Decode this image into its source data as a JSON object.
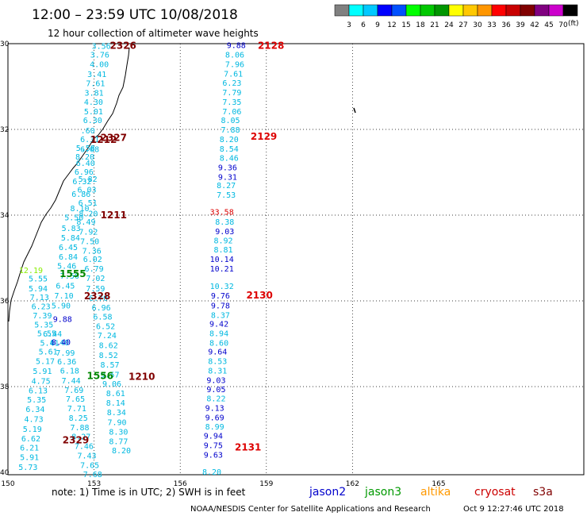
{
  "header": {
    "title": "12:00 – 23:59 UTC 10/08/2018",
    "subtitle": "12 hour collection of altimeter wave heights"
  },
  "colorbar": {
    "unit": "(ft)",
    "labels": [
      "3",
      "6",
      "9",
      "12",
      "15",
      "18",
      "21",
      "24",
      "27",
      "30",
      "33",
      "36",
      "39",
      "42",
      "45",
      "70"
    ],
    "colors": [
      "#808080",
      "#00ffff",
      "#00c8ff",
      "#0000ff",
      "#0050ff",
      "#00ff00",
      "#00c800",
      "#009600",
      "#ffff00",
      "#ffc800",
      "#ff9600",
      "#ff0000",
      "#c80000",
      "#800000",
      "#800080",
      "#cc00cc",
      "#000000"
    ]
  },
  "axes": {
    "lat_labels": [
      "30",
      "32",
      "34",
      "36",
      "38",
      "40"
    ],
    "lon_labels": [
      "150",
      "153",
      "156",
      "159",
      "162",
      "165"
    ]
  },
  "footer": {
    "note": "note: 1) Time is in UTC; 2) SWH is in feet",
    "credit": "NOAA/NESDIS Center for Satellite Applications and Research",
    "timestamp": "Oct  9 12:27:46 UTC 2018",
    "legend": [
      {
        "name": "jason2",
        "color": "#0000cc"
      },
      {
        "name": "jason3",
        "color": "#009900"
      },
      {
        "name": "altika",
        "color": "#ff9900"
      },
      {
        "name": "cryosat",
        "color": "#cc0000"
      },
      {
        "name": "s3a",
        "color": "#800000"
      }
    ]
  },
  "track_colors": {
    "cyan": "#00b8e0",
    "blue": "#0000cc",
    "brightcyan": "#00e0ff",
    "green": "#008800",
    "time_red": "#dd0000",
    "time_dark": "#800000",
    "lightgreen": "#88ee00"
  },
  "time_labels": [
    {
      "text": "2326",
      "lat": 30.03,
      "lon": 153.55,
      "color": "#800000"
    },
    {
      "text": "2327",
      "lat": 32.18,
      "lon": 153.22,
      "color": "#800000"
    },
    {
      "text": "1212",
      "lat": 32.22,
      "lon": 152.87,
      "color": "#800000"
    },
    {
      "text": "1211",
      "lat": 33.98,
      "lon": 153.22,
      "color": "#800000"
    },
    {
      "text": "2328",
      "lat": 35.87,
      "lon": 152.65,
      "color": "#800000"
    },
    {
      "text": "1210",
      "lat": 37.75,
      "lon": 154.2,
      "color": "#800000"
    },
    {
      "text": "2329",
      "lat": 39.23,
      "lon": 151.9,
      "color": "#800000"
    },
    {
      "text": "1555",
      "lat": 35.35,
      "lon": 151.8,
      "color": "#008800"
    },
    {
      "text": "1556",
      "lat": 37.73,
      "lon": 152.75,
      "color": "#008800"
    },
    {
      "text": "2128",
      "lat": 30.03,
      "lon": 158.7,
      "color": "#dd0000"
    },
    {
      "text": "2129",
      "lat": 32.15,
      "lon": 158.45,
      "color": "#dd0000"
    },
    {
      "text": "2130",
      "lat": 35.85,
      "lon": 158.3,
      "color": "#dd0000"
    },
    {
      "text": "2131",
      "lat": 39.4,
      "lon": 157.9,
      "color": "#dd0000"
    }
  ],
  "tracks": [
    {
      "color": "#00b8e0",
      "points": [
        {
          "v": "3.56",
          "lat": 30.05,
          "lon": 153.25
        },
        {
          "v": "3.76",
          "lat": 30.25,
          "lon": 153.2
        },
        {
          "v": "4.00",
          "lat": 30.47,
          "lon": 153.18
        },
        {
          "v": "3.41",
          "lat": 30.7,
          "lon": 153.1
        },
        {
          "v": "7.61",
          "lat": 30.92,
          "lon": 153.05
        },
        {
          "v": "3.81",
          "lat": 31.14,
          "lon": 153.0
        },
        {
          "v": "4.30",
          "lat": 31.35,
          "lon": 152.98
        },
        {
          "v": "5.01",
          "lat": 31.57,
          "lon": 152.98
        },
        {
          "v": "6.30",
          "lat": 31.78,
          "lon": 152.95
        },
        {
          "v": ".60",
          "lat": 32.02,
          "lon": 152.78
        },
        {
          "v": "6.31",
          "lat": 32.22,
          "lon": 152.85
        },
        {
          "v": "5.58",
          "lat": 32.43,
          "lon": 152.7
        },
        {
          "v": "6.08",
          "lat": 32.45,
          "lon": 152.85
        },
        {
          "v": "8.20",
          "lat": 32.63,
          "lon": 152.68
        },
        {
          "v": "6.40",
          "lat": 32.78,
          "lon": 152.7
        },
        {
          "v": "6.96",
          "lat": 32.98,
          "lon": 152.65
        },
        {
          "v": "6.32",
          "lat": 33.2,
          "lon": 152.58
        },
        {
          "v": "5.82",
          "lat": 33.15,
          "lon": 152.78
        },
        {
          "v": "6.03",
          "lat": 33.4,
          "lon": 152.75
        },
        {
          "v": "6.86",
          "lat": 33.5,
          "lon": 152.55
        },
        {
          "v": "6.51",
          "lat": 33.7,
          "lon": 152.78
        },
        {
          "v": "8.10",
          "lat": 33.83,
          "lon": 152.5
        },
        {
          "v": "8.20",
          "lat": 33.95,
          "lon": 152.8
        },
        {
          "v": "5.50",
          "lat": 34.05,
          "lon": 152.3
        }
      ]
    },
    {
      "color": "#00b8e0",
      "points": [
        {
          "v": "8.49",
          "lat": 34.15,
          "lon": 152.72
        },
        {
          "v": "7.92",
          "lat": 34.38,
          "lon": 152.8
        },
        {
          "v": "7.50",
          "lat": 34.6,
          "lon": 152.85
        },
        {
          "v": "7.36",
          "lat": 34.82,
          "lon": 152.92
        },
        {
          "v": "6.02",
          "lat": 35.02,
          "lon": 152.95
        },
        {
          "v": "6.79",
          "lat": 35.24,
          "lon": 153.0
        },
        {
          "v": "7.02",
          "lat": 35.46,
          "lon": 153.05
        },
        {
          "v": "7.59",
          "lat": 35.7,
          "lon": 153.05
        },
        {
          "v": "6.70",
          "lat": 35.93,
          "lon": 153.15
        },
        {
          "v": "6.96",
          "lat": 36.15,
          "lon": 153.25
        },
        {
          "v": "6.58",
          "lat": 36.36,
          "lon": 153.3
        },
        {
          "v": "6.52",
          "lat": 36.58,
          "lon": 153.4
        },
        {
          "v": "7.24",
          "lat": 36.8,
          "lon": 153.45
        },
        {
          "v": "8.62",
          "lat": 37.03,
          "lon": 153.5
        },
        {
          "v": "8.52",
          "lat": 37.26,
          "lon": 153.5
        },
        {
          "v": "8.57",
          "lat": 37.48,
          "lon": 153.55
        },
        {
          "v": "9.57",
          "lat": 37.71,
          "lon": 153.55
        },
        {
          "v": "9.06",
          "lat": 37.93,
          "lon": 153.62
        },
        {
          "v": "8.61",
          "lat": 38.15,
          "lon": 153.75
        },
        {
          "v": "8.14",
          "lat": 38.37,
          "lon": 153.75
        },
        {
          "v": "8.34",
          "lat": 38.59,
          "lon": 153.78
        },
        {
          "v": "7.90",
          "lat": 38.82,
          "lon": 153.8
        },
        {
          "v": "8.30",
          "lat": 39.05,
          "lon": 153.85
        },
        {
          "v": "8.77",
          "lat": 39.27,
          "lon": 153.85
        },
        {
          "v": "8.20",
          "lat": 39.48,
          "lon": 153.95
        }
      ]
    },
    {
      "color": "#00b8e0",
      "points": [
        {
          "v": "5.83",
          "lat": 34.3,
          "lon": 152.2
        },
        {
          "v": "5.84",
          "lat": 34.52,
          "lon": 152.18
        },
        {
          "v": "6.45",
          "lat": 34.74,
          "lon": 152.1
        },
        {
          "v": "6.84",
          "lat": 34.96,
          "lon": 152.1
        },
        {
          "v": "5.46",
          "lat": 35.18,
          "lon": 152.05
        },
        {
          "v": "7.56",
          "lat": 35.41,
          "lon": 152.15
        },
        {
          "v": "6.45",
          "lat": 35.64,
          "lon": 152.0
        },
        {
          "v": "7.10",
          "lat": 35.87,
          "lon": 151.95
        },
        {
          "v": "5.90",
          "lat": 36.1,
          "lon": 151.85
        },
        {
          "v": "6.40",
          "lat": 36.96,
          "lon": 151.8
        },
        {
          "v": "7.99",
          "lat": 37.2,
          "lon": 152.0
        },
        {
          "v": "6.36",
          "lat": 37.41,
          "lon": 152.05
        },
        {
          "v": "6.18",
          "lat": 37.62,
          "lon": 152.15
        },
        {
          "v": "7.44",
          "lat": 37.85,
          "lon": 152.2
        },
        {
          "v": "7.69",
          "lat": 38.07,
          "lon": 152.3
        },
        {
          "v": "7.65",
          "lat": 38.28,
          "lon": 152.35
        },
        {
          "v": "7.71",
          "lat": 38.5,
          "lon": 152.4
        },
        {
          "v": "8.25",
          "lat": 38.72,
          "lon": 152.45
        },
        {
          "v": "7.88",
          "lat": 38.94,
          "lon": 152.5
        },
        {
          "v": "8.27",
          "lat": 39.16,
          "lon": 152.55
        },
        {
          "v": "7.46",
          "lat": 39.38,
          "lon": 152.65
        },
        {
          "v": "7.43",
          "lat": 39.6,
          "lon": 152.75
        },
        {
          "v": "7.65",
          "lat": 39.82,
          "lon": 152.85
        },
        {
          "v": "7.68",
          "lat": 40.04,
          "lon": 152.95
        }
      ]
    },
    {
      "color": "#00b8e0",
      "points": [
        {
          "v": "5.55",
          "lat": 35.47,
          "lon": 151.05
        },
        {
          "v": "5.94",
          "lat": 35.7,
          "lon": 151.05
        },
        {
          "v": "7.13",
          "lat": 35.91,
          "lon": 151.1
        },
        {
          "v": "6.23",
          "lat": 36.12,
          "lon": 151.15
        },
        {
          "v": "7.39",
          "lat": 36.33,
          "lon": 151.2
        },
        {
          "v": "5.35",
          "lat": 36.55,
          "lon": 151.25
        },
        {
          "v": "5.55",
          "lat": 36.75,
          "lon": 151.35
        },
        {
          "v": "6.44",
          "lat": 36.76,
          "lon": 151.55
        },
        {
          "v": "5.41",
          "lat": 36.97,
          "lon": 151.45
        },
        {
          "v": "5.61",
          "lat": 37.18,
          "lon": 151.4
        },
        {
          "v": "5.17",
          "lat": 37.4,
          "lon": 151.3
        },
        {
          "v": "5.91",
          "lat": 37.63,
          "lon": 151.2
        },
        {
          "v": "4.75",
          "lat": 37.86,
          "lon": 151.15
        },
        {
          "v": "6.13",
          "lat": 38.08,
          "lon": 151.05
        },
        {
          "v": "5.35",
          "lat": 38.3,
          "lon": 151.0
        },
        {
          "v": "6.34",
          "lat": 38.52,
          "lon": 150.95
        },
        {
          "v": "4.73",
          "lat": 38.75,
          "lon": 150.9
        },
        {
          "v": "5.19",
          "lat": 38.98,
          "lon": 150.85
        },
        {
          "v": "6.62",
          "lat": 39.2,
          "lon": 150.8
        },
        {
          "v": "6.21",
          "lat": 39.42,
          "lon": 150.75
        },
        {
          "v": "5.91",
          "lat": 39.64,
          "lon": 150.75
        },
        {
          "v": "5.73",
          "lat": 39.87,
          "lon": 150.7
        }
      ]
    },
    {
      "color": "#00b8e0",
      "points": [
        {
          "v": "8.06",
          "lat": 30.25,
          "lon": 157.9
        },
        {
          "v": "7.96",
          "lat": 30.47,
          "lon": 157.9
        },
        {
          "v": "7.61",
          "lat": 30.69,
          "lon": 157.85
        },
        {
          "v": "6.23",
          "lat": 30.91,
          "lon": 157.8
        },
        {
          "v": "7.79",
          "lat": 31.13,
          "lon": 157.8
        },
        {
          "v": "7.35",
          "lat": 31.35,
          "lon": 157.8
        },
        {
          "v": "7.06",
          "lat": 31.57,
          "lon": 157.8
        },
        {
          "v": "8.05",
          "lat": 31.78,
          "lon": 157.75
        },
        {
          "v": "7.88",
          "lat": 32.0,
          "lon": 157.75
        },
        {
          "v": "8.20",
          "lat": 32.22,
          "lon": 157.7
        },
        {
          "v": "8.54",
          "lat": 32.44,
          "lon": 157.7
        },
        {
          "v": "8.46",
          "lat": 32.66,
          "lon": 157.7
        },
        {
          "v": "8.27",
          "lat": 33.3,
          "lon": 157.6
        },
        {
          "v": "7.53",
          "lat": 33.52,
          "lon": 157.6
        },
        {
          "v": "8.38",
          "lat": 34.15,
          "lon": 157.55
        },
        {
          "v": "8.92",
          "lat": 34.58,
          "lon": 157.5
        },
        {
          "v": "8.81",
          "lat": 34.8,
          "lon": 157.5
        },
        {
          "v": "10.32",
          "lat": 35.65,
          "lon": 157.45
        },
        {
          "v": "8.37",
          "lat": 36.32,
          "lon": 157.4
        },
        {
          "v": "8.94",
          "lat": 36.75,
          "lon": 157.35
        },
        {
          "v": "8.60",
          "lat": 36.97,
          "lon": 157.35
        },
        {
          "v": "8.53",
          "lat": 37.4,
          "lon": 157.3
        },
        {
          "v": "8.31",
          "lat": 37.62,
          "lon": 157.3
        },
        {
          "v": "8.22",
          "lat": 38.27,
          "lon": 157.25
        },
        {
          "v": "8.99",
          "lat": 38.93,
          "lon": 157.2
        },
        {
          "v": "8.20",
          "lat": 39.98,
          "lon": 157.1
        }
      ]
    },
    {
      "color": "#0000cc",
      "points": [
        {
          "v": "9.88",
          "lat": 30.03,
          "lon": 157.95
        },
        {
          "v": "9.36",
          "lat": 32.88,
          "lon": 157.65
        },
        {
          "v": "9.31",
          "lat": 33.1,
          "lon": 157.65
        },
        {
          "v": "9.03",
          "lat": 34.37,
          "lon": 157.55
        },
        {
          "v": "10.14",
          "lat": 35.02,
          "lon": 157.45
        },
        {
          "v": "10.21",
          "lat": 35.24,
          "lon": 157.45
        },
        {
          "v": "9.76",
          "lat": 35.87,
          "lon": 157.4
        },
        {
          "v": "9.78",
          "lat": 36.1,
          "lon": 157.4
        },
        {
          "v": "9.42",
          "lat": 36.53,
          "lon": 157.35
        },
        {
          "v": "9.64",
          "lat": 37.18,
          "lon": 157.3
        },
        {
          "v": "9.03",
          "lat": 37.84,
          "lon": 157.25
        },
        {
          "v": "9.05",
          "lat": 38.06,
          "lon": 157.25
        },
        {
          "v": "9.13",
          "lat": 38.49,
          "lon": 157.2
        },
        {
          "v": "9.69",
          "lat": 38.71,
          "lon": 157.2
        },
        {
          "v": "9.94",
          "lat": 39.14,
          "lon": 157.15
        },
        {
          "v": "9.75",
          "lat": 39.36,
          "lon": 157.15
        },
        {
          "v": "9.63",
          "lat": 39.58,
          "lon": 157.15
        },
        {
          "v": "9.88",
          "lat": 36.42,
          "lon": 151.9
        },
        {
          "v": "8.40",
          "lat": 36.95,
          "lon": 151.85
        }
      ]
    },
    {
      "color": "#dd0000",
      "points": [
        {
          "v": "33.58",
          "lat": 33.92,
          "lon": 157.45
        }
      ]
    },
    {
      "color": "#88ee00",
      "points": [
        {
          "v": "12.19",
          "lat": 35.28,
          "lon": 150.8
        }
      ]
    }
  ]
}
